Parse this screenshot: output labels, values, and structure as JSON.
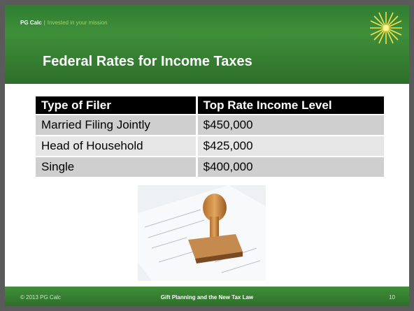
{
  "header": {
    "brand": "PG Calc",
    "separator": "|",
    "tagline": "Invested in your mission",
    "title": "Federal Rates for Income Taxes"
  },
  "table": {
    "columns": [
      "Type of Filer",
      "Top Rate Income Level"
    ],
    "rows": [
      [
        "Married Filing Jointly",
        "$450,000"
      ],
      [
        "Head of Household",
        "$425,000"
      ],
      [
        "Single",
        "$400,000"
      ]
    ]
  },
  "footer": {
    "copyright": "© 2013 PG Calc",
    "title": "Gift Planning and the New Tax Law",
    "page": "10"
  }
}
